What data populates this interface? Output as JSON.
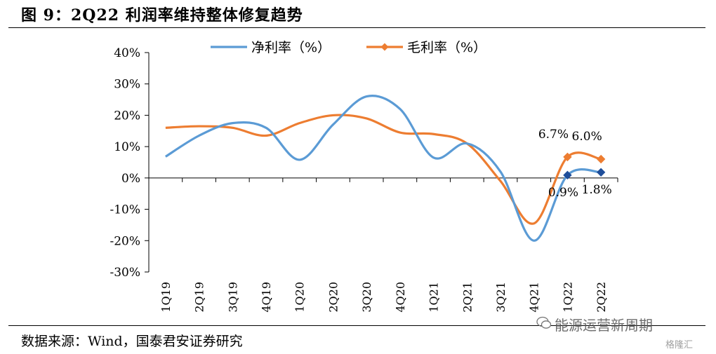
{
  "figure": {
    "title": "图 9：2Q22 利润率维持整体修复趋势",
    "source": "数据来源：Wind，国泰君安证券研究",
    "watermark": "能源运营新周期",
    "watermark_2": "格隆汇"
  },
  "chart_data": {
    "type": "line",
    "smooth": true,
    "categories": [
      "1Q19",
      "2Q19",
      "3Q19",
      "4Q19",
      "1Q20",
      "2Q20",
      "3Q20",
      "4Q20",
      "1Q21",
      "2Q21",
      "3Q21",
      "4Q21",
      "1Q22",
      "2Q22"
    ],
    "ylim": [
      -30,
      40
    ],
    "yticks": [
      -30,
      -20,
      -10,
      0,
      10,
      20,
      30,
      40
    ],
    "ytick_suffix": "%",
    "grid": false,
    "legend_position": "top",
    "series": [
      {
        "name": "净利率（%）",
        "color": "#5B9BD5",
        "marker_color": "#1F4E9A",
        "values": [
          6.8,
          13.5,
          17.5,
          16.0,
          5.8,
          17.0,
          26.0,
          22.0,
          6.5,
          11.0,
          2.0,
          -20.0,
          0.9,
          1.8
        ],
        "marker_indices": [
          12,
          13
        ],
        "point_labels": [
          "0.9%",
          "1.8%"
        ]
      },
      {
        "name": "毛利率（%）",
        "color": "#ED7D31",
        "marker_color": "#ED7D31",
        "values": [
          16.0,
          16.5,
          16.0,
          13.5,
          17.5,
          20.0,
          19.0,
          14.5,
          14.0,
          11.0,
          -1.0,
          -14.5,
          6.7,
          6.0
        ],
        "marker_indices": [
          12,
          13
        ],
        "point_labels": [
          "6.7%",
          "6.0%"
        ]
      }
    ]
  }
}
